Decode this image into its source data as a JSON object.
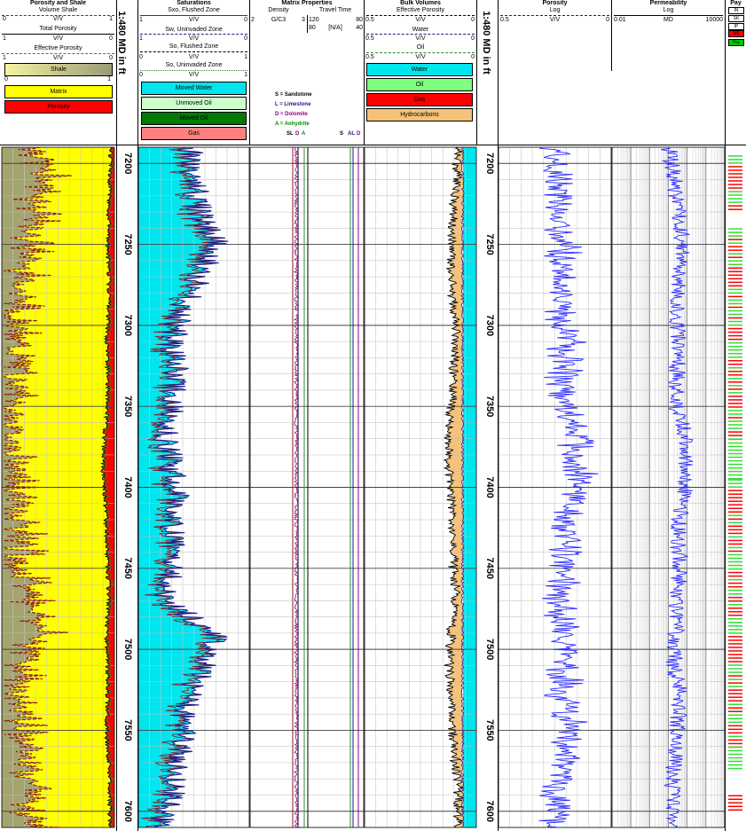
{
  "depth_track": {
    "label": "1:480 MD in ft"
  },
  "track1": {
    "title": "Porosity and Shale",
    "curves": [
      {
        "name": "Volume Shale",
        "unit": "V/V",
        "min": "0",
        "max": "1",
        "color": "#8b1a1a"
      },
      {
        "name": "Total Porosity",
        "unit": "V/V",
        "min": "1",
        "max": "0",
        "color": "#000000"
      },
      {
        "name": "Effective Porosity",
        "unit": "V/V",
        "min": "1",
        "max": "0",
        "color": "#2e8b2e"
      }
    ],
    "legend": [
      {
        "label": "Shale",
        "color": "#9a9a7a"
      },
      {
        "label": "Matrix",
        "color": "#ffff00"
      },
      {
        "label": "Porosity",
        "color": "#ff0000"
      }
    ]
  },
  "track2": {
    "title": "Saturations",
    "curves": [
      {
        "name": "Sxo, Flushed Zone",
        "unit": "V/V",
        "min": "1",
        "max": "0",
        "color": "#8b1a1a"
      },
      {
        "name": "Sw, Uninvaded Zone",
        "unit": "V/V",
        "min": "1",
        "max": "0",
        "color": "#1a1a8b"
      },
      {
        "name": "So, Flushed Zone",
        "unit": "V/V",
        "min": "0",
        "max": "1",
        "color": "#000000"
      },
      {
        "name": "So, Uninvaded Zone",
        "unit": "V/V",
        "min": "0",
        "max": "1",
        "color": "#2e8b2e"
      }
    ],
    "legend": [
      {
        "label": "Moved Water",
        "color": "#00e5ee"
      },
      {
        "label": "Unmoved Oil",
        "color": "#ccffcc"
      },
      {
        "label": "Moved Oil",
        "color": "#007a00"
      },
      {
        "label": "Gas",
        "color": "#ff8080"
      }
    ]
  },
  "track3": {
    "title": "Matrix Properties",
    "col1": "Density",
    "col1_unit": "G/C3",
    "col1_min": "2",
    "col1_max": "3",
    "col2": "Travel Time",
    "col2_min": "120",
    "col2_max": "80",
    "col2_b_min": "80",
    "col2_b_unit": "[N/A]",
    "col2_b_max": "40",
    "lithology": [
      {
        "label": "S = Sandstone",
        "color": "#000000"
      },
      {
        "label": "L = Limestone",
        "color": "#1a1a8b"
      },
      {
        "label": "D = Dolomite",
        "color": "#8b008b"
      },
      {
        "label": "A = Anhydrite",
        "color": "#008b00"
      }
    ],
    "markers_left": [
      "SL",
      "D",
      "A"
    ],
    "markers_right": [
      "S",
      "AL",
      "D"
    ]
  },
  "track4": {
    "title": "Bulk Volumes",
    "curves": [
      {
        "name": "Effective Porosity",
        "unit": "V/V",
        "min": "0.5",
        "max": "0"
      },
      {
        "name": "Water",
        "unit": "V/V",
        "min": "0.5",
        "max": "0"
      },
      {
        "name": "Oil",
        "unit": "V/V",
        "min": "0.5",
        "max": "0"
      }
    ],
    "legend": [
      {
        "label": "Water",
        "color": "#00e5ee"
      },
      {
        "label": "Oil",
        "color": "#7fff7f"
      },
      {
        "label": "Gas",
        "color": "#ff0000"
      },
      {
        "label": "Hydrocarbons",
        "color": "#f5c27a"
      }
    ]
  },
  "track5": {
    "title": "Porosity",
    "scale": "Log",
    "unit": "V/V",
    "min": "0.5",
    "max": "0"
  },
  "track6": {
    "title": "Permeability",
    "scale": "Log",
    "unit": "MD",
    "min": "0.01",
    "max": "10000"
  },
  "track7": {
    "title": "Pay",
    "legend": [
      "IN",
      "SK",
      "IP",
      "NS",
      "Pay"
    ]
  },
  "chart_data": {
    "type": "line",
    "depth_unit": "ft",
    "depth_range": [
      7190,
      7610
    ],
    "depth_ticks": [
      7200,
      7250,
      7300,
      7350,
      7400,
      7450,
      7500,
      7550,
      7600
    ],
    "series": [
      {
        "name": "Volume Shale",
        "depth": [
          7190,
          7210,
          7230,
          7250,
          7270,
          7290,
          7310,
          7330,
          7350,
          7370,
          7390,
          7410,
          7430,
          7450,
          7470,
          7490,
          7510,
          7530,
          7550,
          7570,
          7590,
          7610
        ],
        "values": [
          0.35,
          0.4,
          0.3,
          0.25,
          0.2,
          0.15,
          0.12,
          0.15,
          0.1,
          0.08,
          0.12,
          0.15,
          0.2,
          0.15,
          0.3,
          0.35,
          0.2,
          0.15,
          0.2,
          0.25,
          0.3,
          0.3
        ]
      },
      {
        "name": "Effective Porosity",
        "depth": [
          7190,
          7210,
          7230,
          7250,
          7270,
          7290,
          7310,
          7330,
          7350,
          7370,
          7390,
          7410,
          7430,
          7450,
          7470,
          7490,
          7510,
          7530,
          7550,
          7570,
          7590,
          7610
        ],
        "values": [
          0.03,
          0.04,
          0.05,
          0.06,
          0.05,
          0.05,
          0.07,
          0.06,
          0.06,
          0.09,
          0.1,
          0.08,
          0.07,
          0.06,
          0.05,
          0.07,
          0.06,
          0.06,
          0.07,
          0.05,
          0.04,
          0.04
        ]
      },
      {
        "name": "Sw, Uninvaded Zone",
        "depth": [
          7190,
          7210,
          7230,
          7250,
          7270,
          7290,
          7310,
          7330,
          7350,
          7370,
          7390,
          7410,
          7430,
          7450,
          7470,
          7490,
          7510,
          7530,
          7550,
          7570,
          7590,
          7610
        ],
        "values": [
          0.55,
          0.5,
          0.45,
          0.3,
          0.45,
          0.6,
          0.7,
          0.65,
          0.7,
          0.75,
          0.7,
          0.65,
          0.7,
          0.7,
          0.75,
          0.3,
          0.4,
          0.55,
          0.6,
          0.65,
          0.7,
          0.8
        ]
      },
      {
        "name": "Bulk Volume Hydrocarbons",
        "depth": [
          7190,
          7210,
          7230,
          7250,
          7270,
          7290,
          7310,
          7330,
          7350,
          7370,
          7390,
          7410,
          7430,
          7450,
          7470,
          7490,
          7510,
          7530,
          7550,
          7570,
          7590,
          7610
        ],
        "values": [
          0.02,
          0.03,
          0.04,
          0.05,
          0.05,
          0.04,
          0.03,
          0.04,
          0.05,
          0.07,
          0.06,
          0.05,
          0.04,
          0.04,
          0.03,
          0.05,
          0.06,
          0.05,
          0.05,
          0.03,
          0.02,
          0.02
        ]
      },
      {
        "name": "Permeability",
        "depth": [
          7190,
          7210,
          7230,
          7250,
          7270,
          7290,
          7310,
          7330,
          7350,
          7370,
          7390,
          7410,
          7430,
          7450,
          7470,
          7490,
          7510,
          7530,
          7550,
          7570,
          7590,
          7610
        ],
        "values": [
          10,
          20,
          30,
          60,
          40,
          25,
          30,
          30,
          25,
          80,
          100,
          50,
          30,
          40,
          30,
          25,
          20,
          40,
          30,
          20,
          15,
          15
        ]
      }
    ],
    "pay_flags": [
      {
        "top": 7195,
        "base": 7230,
        "flag": "mixed"
      },
      {
        "top": 7240,
        "base": 7370,
        "flag": "mixed"
      },
      {
        "top": 7370,
        "base": 7395,
        "flag": "Pay"
      },
      {
        "top": 7395,
        "base": 7560,
        "flag": "mixed"
      },
      {
        "top": 7560,
        "base": 7575,
        "flag": "Pay"
      },
      {
        "top": 7590,
        "base": 7600,
        "flag": "NS"
      }
    ]
  }
}
